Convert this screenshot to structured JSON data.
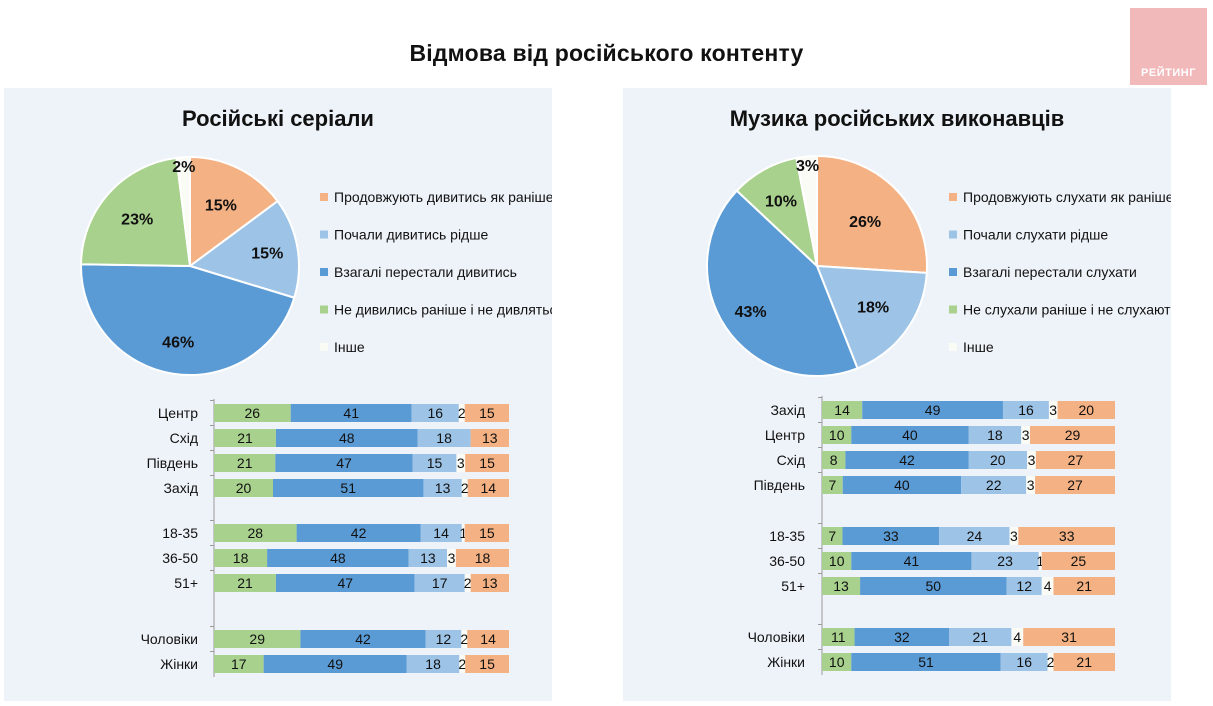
{
  "title": "Відмова від російського контенту",
  "logo": {
    "text": "РЕЙТИНГ"
  },
  "colors": {
    "orange": "#f4b183",
    "light_blue": "#9dc3e6",
    "blue": "#5b9bd5",
    "green": "#a9d18e",
    "other": "#fbfbf6",
    "panel_bg": "#eef3f9",
    "logo_bg": "#f2b9bb"
  },
  "chart_data": [
    {
      "type": "pie",
      "title": "Російські серіали",
      "legend": [
        "Продовжують дивитись як раніше",
        "Почали дивитись рідше",
        "Взагалі перестали дивитись",
        "Не дивились раніше і не дивляться",
        "Інше"
      ],
      "slices": [
        {
          "name": "Продовжують дивитись як раніше",
          "value": 15,
          "label": "15%",
          "color": "#f4b183"
        },
        {
          "name": "Почали дивитись рідше",
          "value": 15,
          "label": "15%",
          "color": "#9dc3e6"
        },
        {
          "name": "Взагалі перестали дивитись",
          "value": 46,
          "label": "46%",
          "color": "#5b9bd5"
        },
        {
          "name": "Не дивились раніше і не дивляться",
          "value": 23,
          "label": "23%",
          "color": "#a9d18e"
        },
        {
          "name": "Інше",
          "value": 2,
          "label": "2%",
          "color": "#fbfbf6"
        }
      ],
      "bars": {
        "type": "stacked-bar",
        "segment_order": [
          "Не дивились раніше і не дивляться",
          "Взагалі перестали дивитись",
          "Почали дивитись рідше",
          "Інше",
          "Продовжують дивитись як раніше"
        ],
        "groups": [
          {
            "rows": [
              {
                "category": "Центр",
                "values": [
                  26,
                  41,
                  16,
                  2,
                  15
                ]
              },
              {
                "category": "Схід",
                "values": [
                  21,
                  48,
                  18,
                  0,
                  13
                ]
              },
              {
                "category": "Південь",
                "values": [
                  21,
                  47,
                  15,
                  3,
                  15
                ]
              },
              {
                "category": "Захід",
                "values": [
                  20,
                  51,
                  13,
                  2,
                  14
                ]
              }
            ]
          },
          {
            "rows": [
              {
                "category": "18-35",
                "values": [
                  28,
                  42,
                  14,
                  1,
                  15
                ]
              },
              {
                "category": "36-50",
                "values": [
                  18,
                  48,
                  13,
                  3,
                  18
                ]
              },
              {
                "category": "51+",
                "values": [
                  21,
                  47,
                  17,
                  2,
                  13
                ]
              }
            ]
          },
          {
            "rows": [
              {
                "category": "Чоловіки",
                "values": [
                  29,
                  42,
                  12,
                  2,
                  14
                ]
              },
              {
                "category": "Жінки",
                "values": [
                  17,
                  49,
                  18,
                  2,
                  15
                ]
              }
            ]
          }
        ]
      }
    },
    {
      "type": "pie",
      "title": "Музика російських виконавців",
      "legend": [
        "Продовжують слухати як раніше",
        "Почали слухати рідше",
        "Взагалі перестали слухати",
        "Не слухали раніше і не слухають",
        "Інше"
      ],
      "slices": [
        {
          "name": "Продовжують слухати як раніше",
          "value": 26,
          "label": "26%",
          "color": "#f4b183"
        },
        {
          "name": "Почали слухати рідше",
          "value": 18,
          "label": "18%",
          "color": "#9dc3e6"
        },
        {
          "name": "Взагалі перестали слухати",
          "value": 43,
          "label": "43%",
          "color": "#5b9bd5"
        },
        {
          "name": "Не слухали раніше і не слухають",
          "value": 10,
          "label": "10%",
          "color": "#a9d18e"
        },
        {
          "name": "Інше",
          "value": 3,
          "label": "3%",
          "color": "#fbfbf6"
        }
      ],
      "bars": {
        "type": "stacked-bar",
        "segment_order": [
          "Не слухали раніше і не слухають",
          "Взагалі перестали слухати",
          "Почали слухати рідше",
          "Інше",
          "Продовжують слухати як раніше"
        ],
        "groups": [
          {
            "rows": [
              {
                "category": "Захід",
                "values": [
                  14,
                  49,
                  16,
                  3,
                  20
                ]
              },
              {
                "category": "Центр",
                "values": [
                  10,
                  40,
                  18,
                  3,
                  29
                ]
              },
              {
                "category": "Схід",
                "values": [
                  8,
                  42,
                  20,
                  3,
                  27
                ]
              },
              {
                "category": "Південь",
                "values": [
                  7,
                  40,
                  22,
                  3,
                  27
                ]
              }
            ]
          },
          {
            "rows": [
              {
                "category": "18-35",
                "values": [
                  7,
                  33,
                  24,
                  3,
                  33
                ]
              },
              {
                "category": "36-50",
                "values": [
                  10,
                  41,
                  23,
                  1,
                  25
                ]
              },
              {
                "category": "51+",
                "values": [
                  13,
                  50,
                  12,
                  4,
                  21
                ]
              }
            ]
          },
          {
            "rows": [
              {
                "category": "Чоловіки",
                "values": [
                  11,
                  32,
                  21,
                  4,
                  31
                ]
              },
              {
                "category": "Жінки",
                "values": [
                  10,
                  51,
                  16,
                  2,
                  21
                ]
              }
            ]
          }
        ]
      }
    }
  ]
}
